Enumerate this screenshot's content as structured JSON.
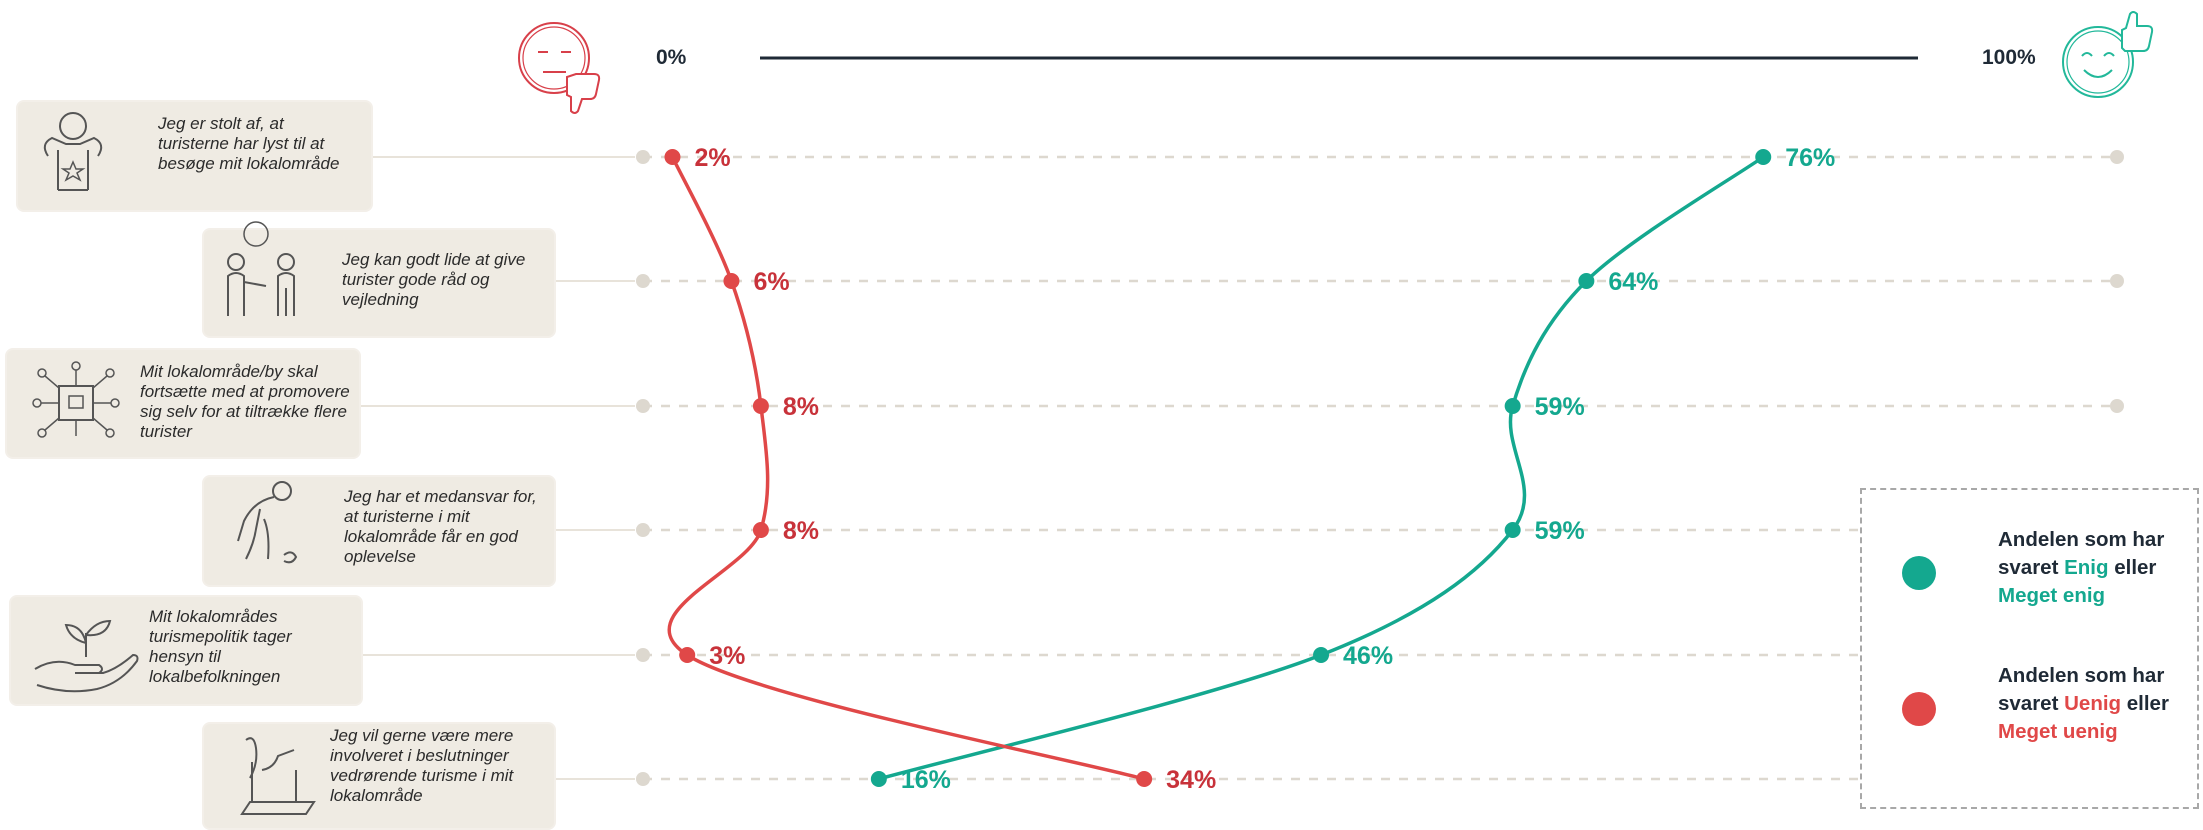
{
  "scale": {
    "min_label": "0%",
    "max_label": "100%"
  },
  "colors": {
    "agree": "#14a88f",
    "disagree": "#e04848",
    "disagree_text": "#c8323a",
    "card": "#efebe3",
    "dashed": "#ddd8cf",
    "axis": "#1f2a36"
  },
  "icons": {
    "left_face": "sad-face-thumbs-down-icon",
    "right_face": "smiley-face-thumbs-up-icon"
  },
  "statements": [
    {
      "text": "Jeg er stolt af, at turisterne har lyst til at besøge mit lokalområde",
      "icon": "proud-person-star-icon"
    },
    {
      "text": "Jeg kan godt lide at give turister gode råd og vejledning",
      "icon": "two-people-advice-icon"
    },
    {
      "text": "Mit lokalområde/by skal fortsætte med at promovere sig selv for at tiltrække flere turister",
      "icon": "network-promotion-icon"
    },
    {
      "text": "Jeg har et medansvar for, at turisterne i mit lokalområde får en god oplevelse",
      "icon": "person-picking-up-icon"
    },
    {
      "text": "Mit lokalområdes turismepolitik tager hensyn til lokalbefolkningen",
      "icon": "hand-plant-icon"
    },
    {
      "text": "Jeg vil gerne være mere involveret i beslutninger vedrørende turisme i mit lokalområde",
      "icon": "ballot-box-icon"
    }
  ],
  "chart_data": {
    "type": "line",
    "x_range": [
      0,
      100
    ],
    "series": [
      {
        "name": "Andelen som har svaret Enig eller Meget enig",
        "key": "agree",
        "values": [
          76,
          64,
          59,
          59,
          46,
          16
        ],
        "labels": [
          "76%",
          "64%",
          "59%",
          "59%",
          "46%",
          "16%"
        ]
      },
      {
        "name": "Andelen som har svaret Uenig eller Meget uenig",
        "key": "disagree",
        "values": [
          2,
          6,
          8,
          8,
          3,
          34
        ],
        "labels": [
          "2%",
          "6%",
          "8%",
          "8%",
          "3%",
          "34%"
        ]
      }
    ]
  },
  "legend": {
    "agree": {
      "line1": "Andelen som har",
      "line2_prefix": "svaret ",
      "highlight": "Enig",
      "line2_suffix": " eller",
      "line3": "Meget enig"
    },
    "disagree": {
      "line1": "Andelen som har",
      "line2_prefix": "svaret ",
      "highlight": "Uenig",
      "line2_suffix": " eller",
      "line3": "Meget uenig"
    }
  }
}
